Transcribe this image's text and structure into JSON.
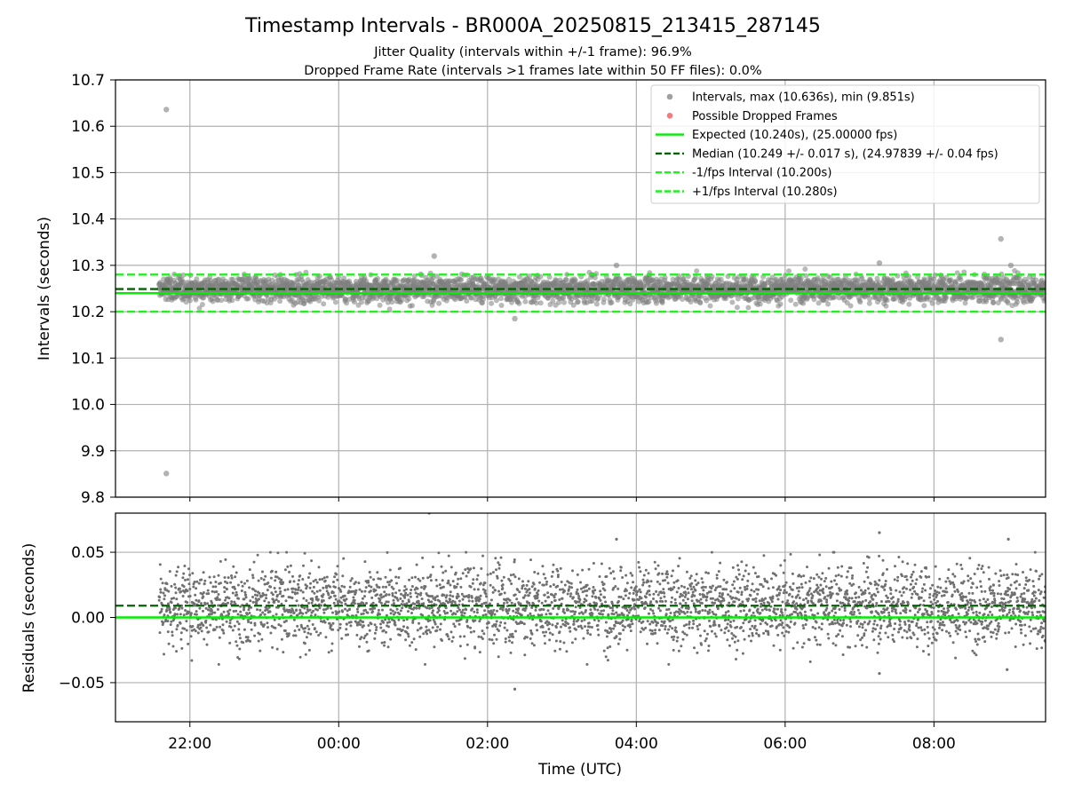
{
  "colors": {
    "intervals": "#808080",
    "dropped": "#f05050",
    "expected": "#00ee00",
    "median": "#006400",
    "fps_band": "#22ee22",
    "grid": "#b0b0b0"
  },
  "figure": {
    "title": "Timestamp Intervals - BR000A_20250815_213415_287145",
    "subtitle_1": "Jitter Quality (intervals within +/-1 frame): 96.9%",
    "subtitle_2": "Dropped Frame Rate (intervals >1 frames late within 50 FF files): 0.0%"
  },
  "chart_data": [
    {
      "type": "scatter",
      "ylabel": "Intervals (seconds)",
      "xlim": [
        "21:00",
        "09:30"
      ],
      "ylim": [
        9.8,
        10.7
      ],
      "x_ticks": [
        "22:00",
        "00:00",
        "02:00",
        "04:00",
        "06:00",
        "08:00"
      ],
      "y_ticks": [
        "9.8",
        "9.9",
        "10.0",
        "10.1",
        "10.2",
        "10.3",
        "10.4",
        "10.5",
        "10.6",
        "10.7"
      ],
      "grid": true,
      "legend_position": "upper-right",
      "legend": [
        {
          "label": "Intervals, max (10.636s), min (9.851s)",
          "style": "marker",
          "color": "#808080"
        },
        {
          "label": "Possible Dropped Frames",
          "style": "marker",
          "color": "#f05050"
        },
        {
          "label": "Expected (10.240s), (25.00000 fps)",
          "style": "solid",
          "color": "#00ee00"
        },
        {
          "label": "Median (10.249 +/- 0.017 s), (24.97839 +/- 0.04 fps)",
          "style": "dashed",
          "color": "#006400"
        },
        {
          "label": "-1/fps Interval (10.200s)",
          "style": "dashed",
          "color": "#22ee22"
        },
        {
          "label": "+1/fps Interval (10.280s)",
          "style": "dashed",
          "color": "#22ee22"
        }
      ],
      "reference_lines": {
        "expected": 10.24,
        "median": 10.249,
        "lower_fps": 10.2,
        "upper_fps": 10.28
      },
      "data_start": "21:35",
      "data_end": "09:30",
      "scatter_center": 10.249,
      "scatter_spread": 0.017,
      "outliers": [
        {
          "x": "21:41",
          "y": 10.636
        },
        {
          "x": "21:41",
          "y": 9.851
        },
        {
          "x": "01:17",
          "y": 10.32
        },
        {
          "x": "02:22",
          "y": 10.185
        },
        {
          "x": "03:44",
          "y": 10.3
        },
        {
          "x": "07:16",
          "y": 10.305
        },
        {
          "x": "08:54",
          "y": 10.357
        },
        {
          "x": "08:54",
          "y": 10.14
        },
        {
          "x": "09:02",
          "y": 10.3
        }
      ]
    },
    {
      "type": "scatter",
      "xlabel": "Time (UTC)",
      "ylabel": "Residuals (seconds)",
      "xlim": [
        "21:00",
        "09:30"
      ],
      "ylim": [
        -0.08,
        0.08
      ],
      "x_ticks": [
        "22:00",
        "00:00",
        "02:00",
        "04:00",
        "06:00",
        "08:00"
      ],
      "y_ticks": [
        "−0.05",
        "0.00",
        "0.05"
      ],
      "grid": true,
      "reference_lines": {
        "zero": 0.0,
        "median": 0.009
      },
      "scatter_center": 0.009,
      "scatter_spread": 0.017,
      "outliers": [
        {
          "x": "01:13",
          "y": 0.08
        },
        {
          "x": "02:22",
          "y": -0.055
        },
        {
          "x": "03:44",
          "y": 0.06
        },
        {
          "x": "07:16",
          "y": 0.065
        },
        {
          "x": "07:16",
          "y": -0.043
        },
        {
          "x": "09:00",
          "y": 0.06
        },
        {
          "x": "08:59",
          "y": -0.04
        }
      ]
    }
  ]
}
